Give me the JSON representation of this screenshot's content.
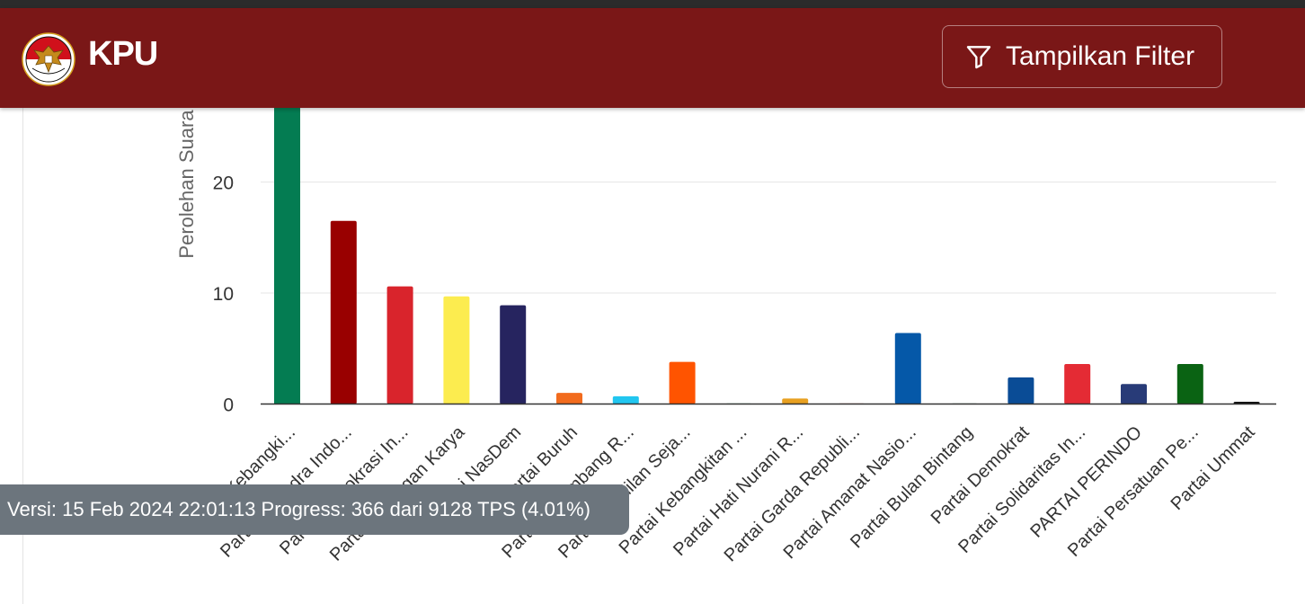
{
  "header": {
    "brand": "KPU",
    "filter_button": "Tampilkan Filter",
    "logo_icon": "garuda-emblem-icon",
    "filter_icon": "funnel-icon",
    "colors": {
      "navbar": "#7a1717",
      "top_strip": "#2b2b2b"
    }
  },
  "footer": {
    "version_text": "Versi: 15 Feb 2024 22:01:13 Progress: 366 dari 9128 TPS (4.01%)"
  },
  "chart_data": {
    "type": "bar",
    "ylabel": "Perolehan Suara",
    "xlabel": "",
    "yticks": [
      0,
      10,
      20
    ],
    "ylim": [
      0,
      27
    ],
    "grid": true,
    "categories": [
      "Partai Kebangki...",
      "Partai Gerindra Indo...",
      "Partai Demokrasi In...",
      "Partai Golongan Karya",
      "Partai NasDem",
      "Partai Buruh",
      "Partai Gelombang R...",
      "Partai Keadilan Seja...",
      "Partai Kebangkitan ...",
      "Partai Hati Nurani R...",
      "Partai Garda Republi...",
      "Partai Amanat Nasio...",
      "Partai Bulan Bintang",
      "Partai Demokrat",
      "Partai Solidaritas In...",
      "PARTAI PERINDO",
      "Partai Persatuan Pe...",
      "Partai Ummat"
    ],
    "values": [
      27,
      16.5,
      10.6,
      9.7,
      8.9,
      1.0,
      0.7,
      3.8,
      0.05,
      0.5,
      0.05,
      6.4,
      0.05,
      2.4,
      3.6,
      1.8,
      3.6,
      0.2
    ],
    "colors": [
      "#047c52",
      "#990000",
      "#d9242c",
      "#fcec4f",
      "#26245f",
      "#f26b1d",
      "#21c6f0",
      "#ff5400",
      "#0e8c43",
      "#e8a020",
      "#c0392b",
      "#0558a8",
      "#1a6b3a",
      "#0a4c96",
      "#e42b34",
      "#283b78",
      "#0a6313",
      "#111111"
    ]
  }
}
